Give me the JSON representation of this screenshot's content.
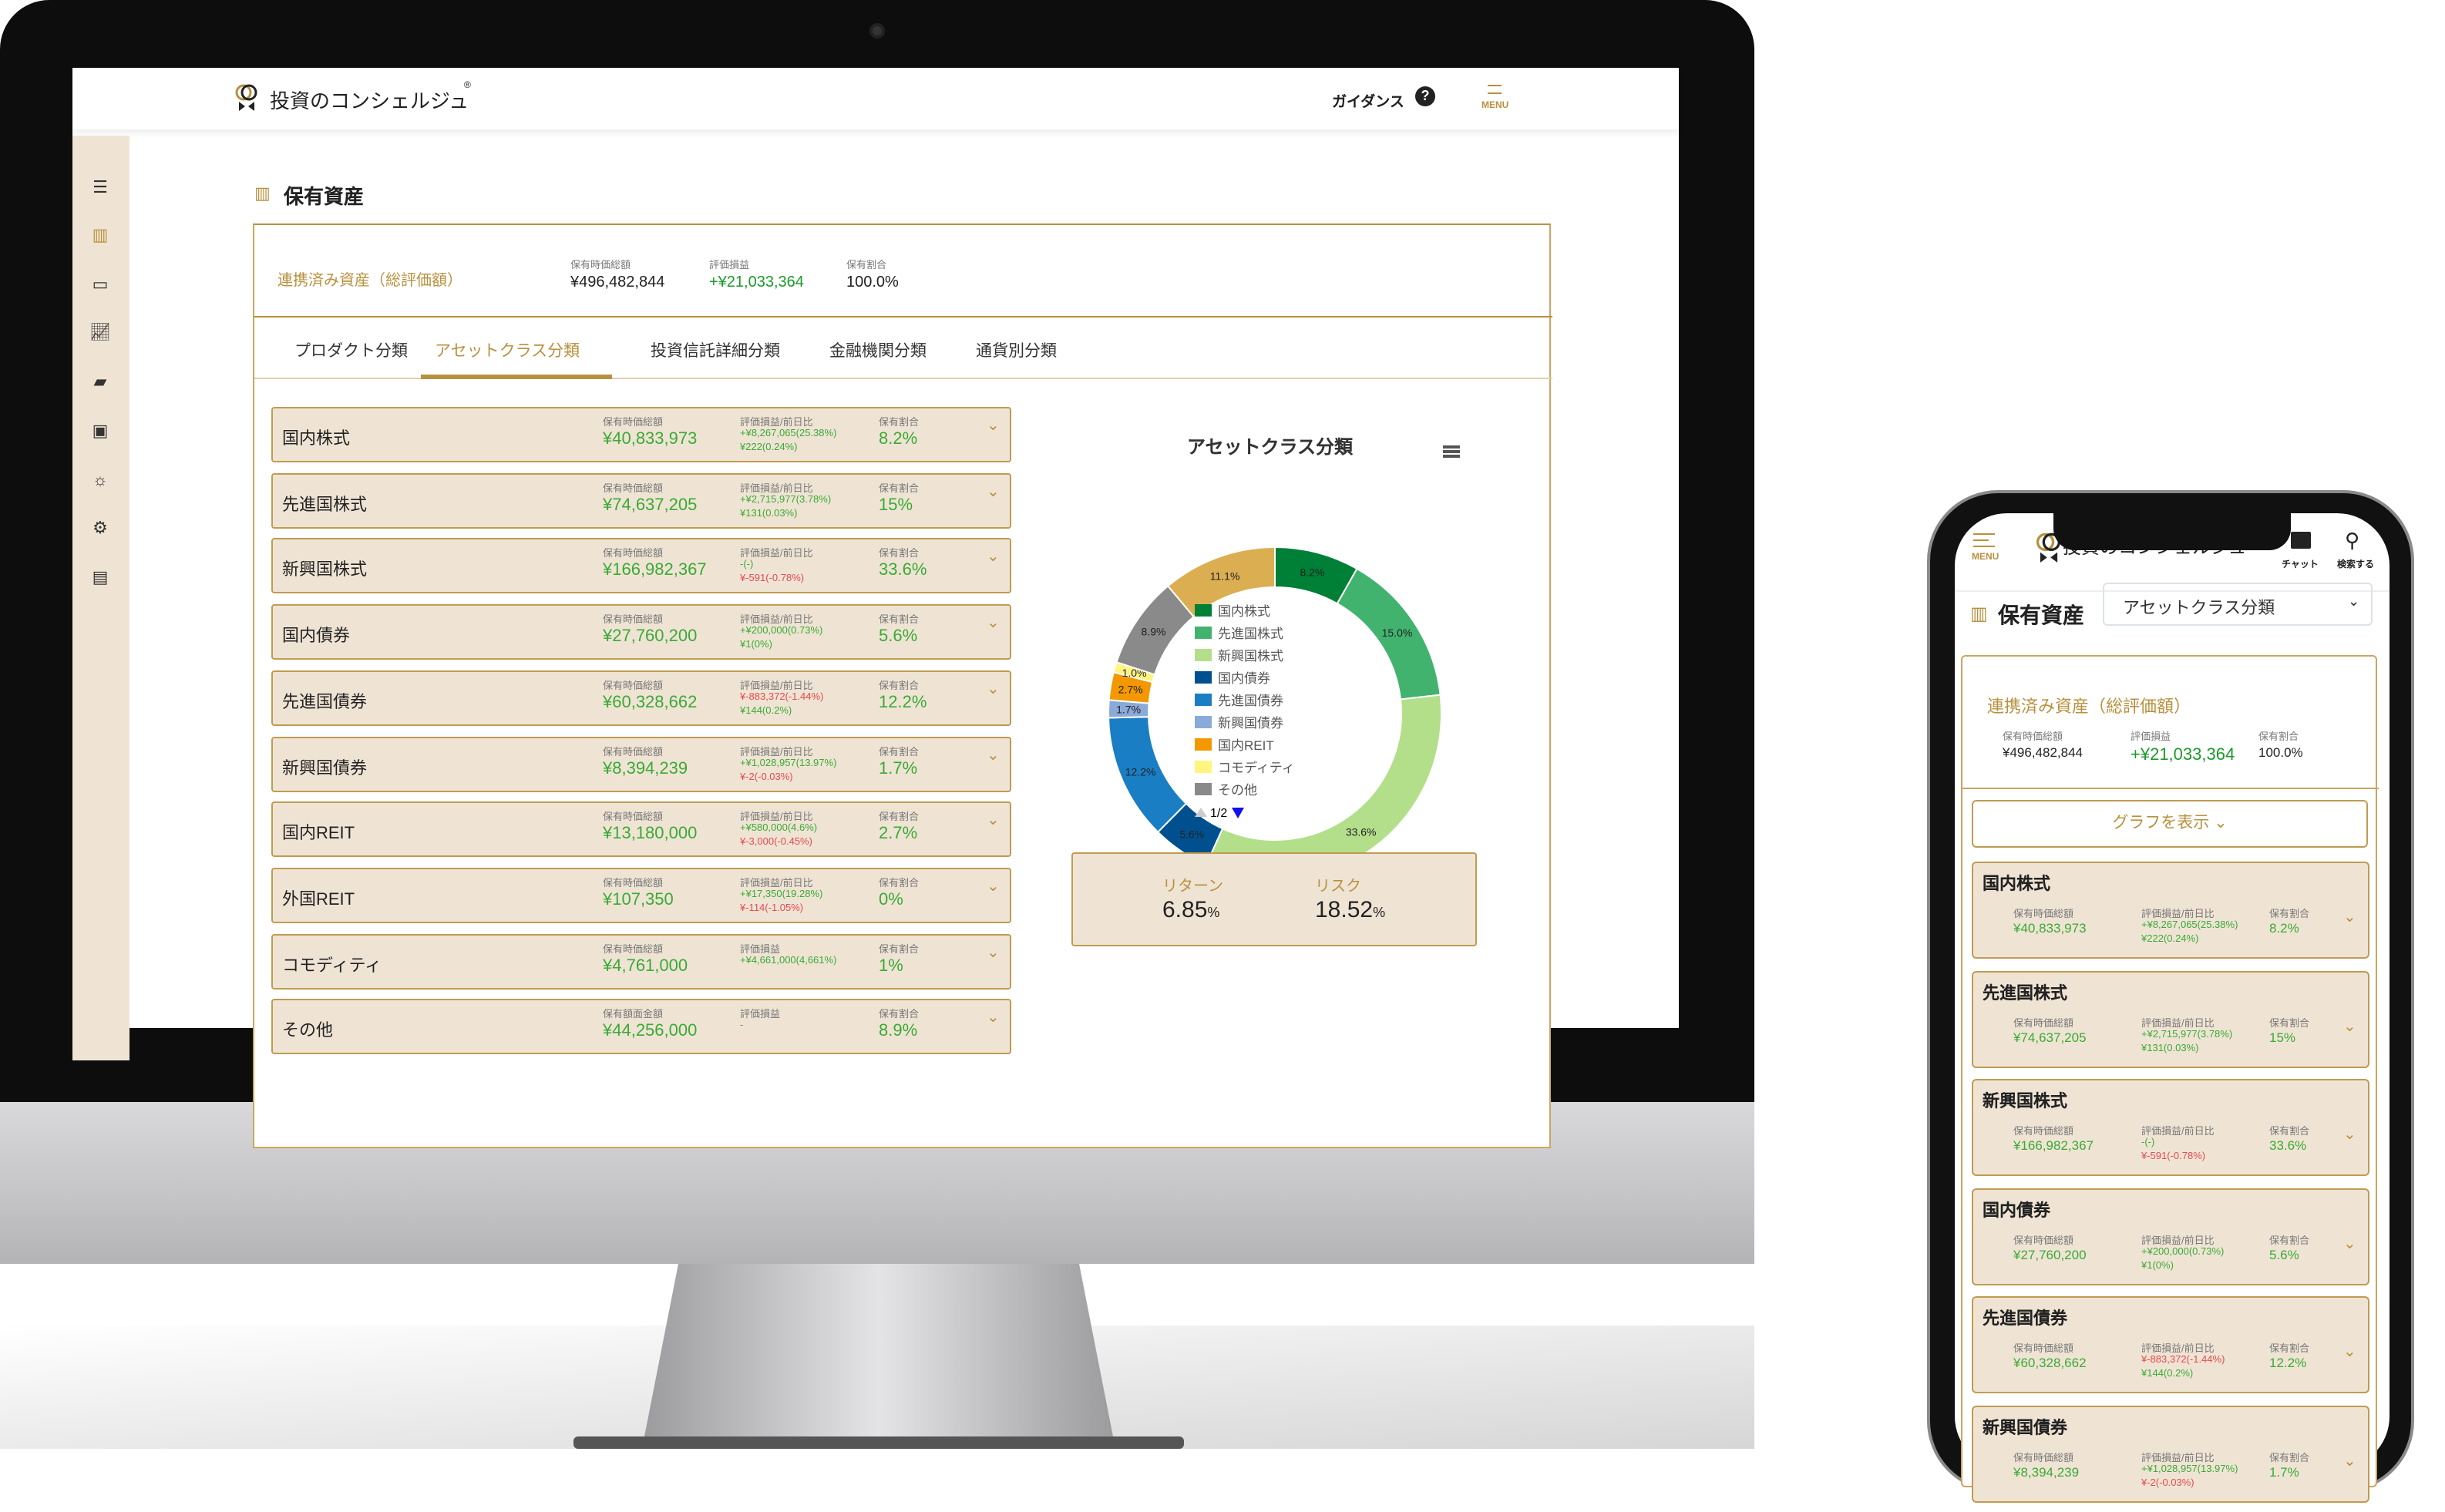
{
  "app": {
    "logo_text": "投資のコンシェルジュ",
    "registered_mark": "®",
    "guidance_label": "ガイダンス",
    "help_icon_text": "?",
    "menu_label": "MENU",
    "chat_label": "チャット",
    "search_label": "検索する"
  },
  "page": {
    "title": "保有資産"
  },
  "summary": {
    "title": "連携済み資産（総評価額）",
    "col1_label": "保有時価総額",
    "col1_value": "¥496,482,844",
    "col2_label": "評価損益",
    "col2_value": "+¥21,033,364",
    "col3_label": "保有割合",
    "col3_value": "100.0%"
  },
  "tabs": [
    {
      "label": "プロダクト分類"
    },
    {
      "label": "アセットクラス分類",
      "active": true
    },
    {
      "label": "投資信託詳細分類"
    },
    {
      "label": "金融機関分類"
    },
    {
      "label": "通貨別分類"
    }
  ],
  "mobile": {
    "select_value": "アセットクラス分類",
    "graph_button": "グラフを表示"
  },
  "colors": {
    "gold": "#b8913f",
    "beige": "#efe4d4",
    "positive": "#3aaa35",
    "negative": "#e8484f"
  },
  "assets": [
    {
      "name": "国内株式",
      "value_label": "保有時価総額",
      "value": "¥40,833,973",
      "gain_label": "評価損益/前日比",
      "gain": "+¥8,267,065(25.38%)",
      "gain_sign": "positive",
      "day": "¥222(0.24%)",
      "day_sign": "positive",
      "share_label": "保有割合",
      "share": "8.2%"
    },
    {
      "name": "先進国株式",
      "value_label": "保有時価総額",
      "value": "¥74,637,205",
      "gain_label": "評価損益/前日比",
      "gain": "+¥2,715,977(3.78%)",
      "gain_sign": "positive",
      "day": "¥131(0.03%)",
      "day_sign": "positive",
      "share_label": "保有割合",
      "share": "15%"
    },
    {
      "name": "新興国株式",
      "value_label": "保有時価総額",
      "value": "¥166,982,367",
      "gain_label": "評価損益/前日比",
      "gain": "-(-)",
      "gain_sign": "positive",
      "day": "¥-591(-0.78%)",
      "day_sign": "negative",
      "share_label": "保有割合",
      "share": "33.6%"
    },
    {
      "name": "国内債券",
      "value_label": "保有時価総額",
      "value": "¥27,760,200",
      "gain_label": "評価損益/前日比",
      "gain": "+¥200,000(0.73%)",
      "gain_sign": "positive",
      "day": "¥1(0%)",
      "day_sign": "positive",
      "share_label": "保有割合",
      "share": "5.6%"
    },
    {
      "name": "先進国債券",
      "value_label": "保有時価総額",
      "value": "¥60,328,662",
      "gain_label": "評価損益/前日比",
      "gain": "¥-883,372(-1.44%)",
      "gain_sign": "negative",
      "day": "¥144(0.2%)",
      "day_sign": "positive",
      "share_label": "保有割合",
      "share": "12.2%"
    },
    {
      "name": "新興国債券",
      "value_label": "保有時価総額",
      "value": "¥8,394,239",
      "gain_label": "評価損益/前日比",
      "gain": "+¥1,028,957(13.97%)",
      "gain_sign": "positive",
      "day": "¥-2(-0.03%)",
      "day_sign": "negative",
      "share_label": "保有割合",
      "share": "1.7%"
    },
    {
      "name": "国内REIT",
      "value_label": "保有時価総額",
      "value": "¥13,180,000",
      "gain_label": "評価損益/前日比",
      "gain": "+¥580,000(4.6%)",
      "gain_sign": "positive",
      "day": "¥-3,000(-0.45%)",
      "day_sign": "negative",
      "share_label": "保有割合",
      "share": "2.7%"
    },
    {
      "name": "外国REIT",
      "value_label": "保有時価総額",
      "value": "¥107,350",
      "gain_label": "評価損益/前日比",
      "gain": "+¥17,350(19.28%)",
      "gain_sign": "positive",
      "day": "¥-114(-1.05%)",
      "day_sign": "negative",
      "share_label": "保有割合",
      "share": "0%"
    },
    {
      "name": "コモディティ",
      "value_label": "保有時価総額",
      "value": "¥4,761,000",
      "gain_label": "評価損益",
      "gain": "+¥4,661,000(4,661%)",
      "gain_sign": "positive",
      "share_label": "保有割合",
      "share": "1%"
    },
    {
      "name": "その他",
      "value_label": "保有額面金額",
      "value": "¥44,256,000",
      "gain_label": "評価損益",
      "gain": "-",
      "gain_sign": "positive",
      "share_label": "保有割合",
      "share": "8.9%"
    }
  ],
  "chart_data": {
    "type": "pie",
    "donut": true,
    "title": "アセットクラス分類",
    "slices": [
      {
        "label": "国内株式",
        "value": 8.2,
        "color": "#007f36"
      },
      {
        "label": "先進国株式",
        "value": 15.0,
        "color": "#41b36e"
      },
      {
        "label": "新興国株式",
        "value": 33.6,
        "color": "#b3df8a"
      },
      {
        "label": "国内債券",
        "value": 5.6,
        "color": "#00508f"
      },
      {
        "label": "先進国債券",
        "value": 12.2,
        "color": "#1a7ec4"
      },
      {
        "label": "新興国債券",
        "value": 1.7,
        "color": "#8aaad9"
      },
      {
        "label": "国内REIT",
        "value": 2.7,
        "color": "#f39800"
      },
      {
        "label": "コモディティ",
        "value": 1.0,
        "color": "#fff57f"
      },
      {
        "label": "その他",
        "value": 8.9,
        "color": "#8a8a8a"
      },
      {
        "label": "",
        "value": 11.1,
        "color": "#dbae52"
      }
    ],
    "legend_page": "1/2",
    "legend_placement": "center",
    "return_label": "リターン",
    "return_value": "6.85",
    "risk_label": "リスク",
    "risk_value": "18.52",
    "percent_unit": "%"
  }
}
